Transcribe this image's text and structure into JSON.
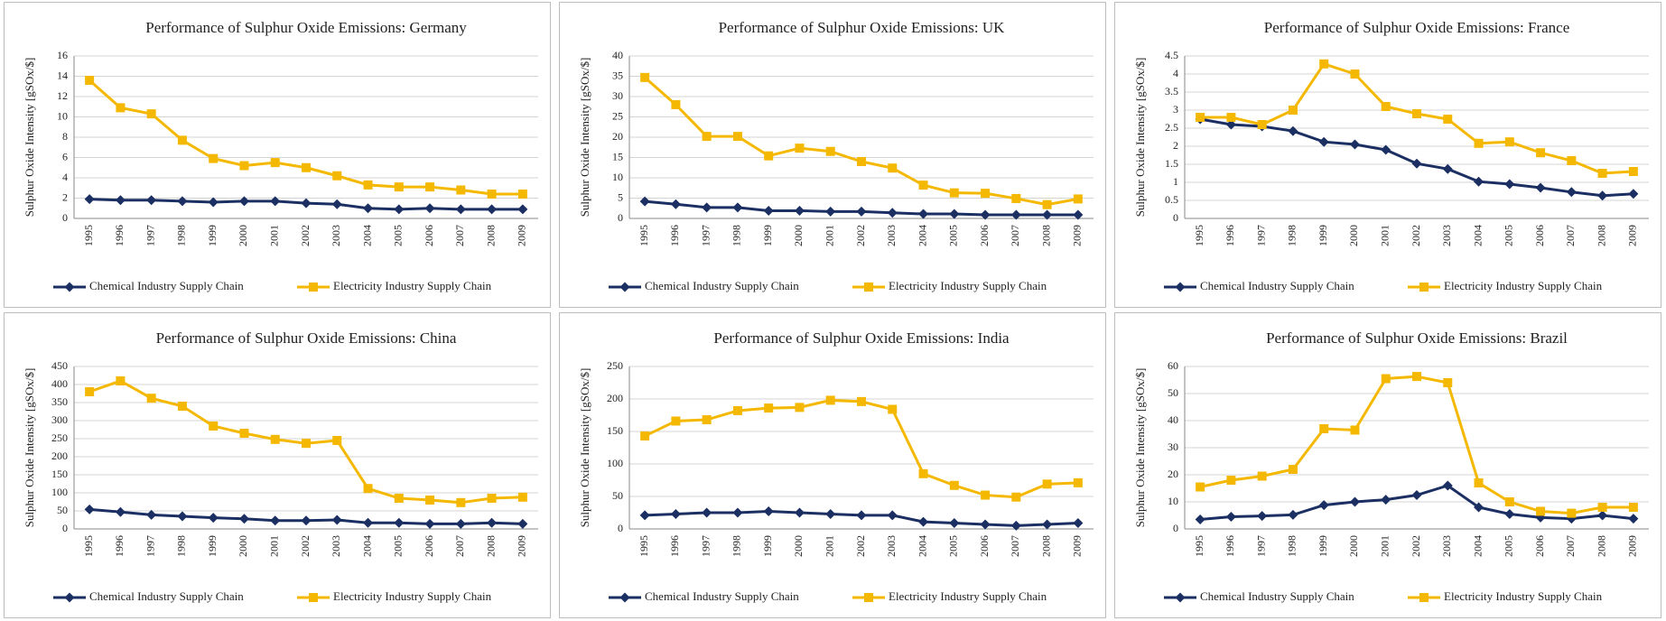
{
  "chart_data": [
    {
      "type": "line",
      "title": "Performance of  Sulphur Oxide Emissions: Germany",
      "y_label": "Sulphur Oxide Intensity [gSOx/$]",
      "categories": [
        "1995",
        "1996",
        "1997",
        "1998",
        "1999",
        "2000",
        "2001",
        "2002",
        "2003",
        "2004",
        "2005",
        "2006",
        "2007",
        "2008",
        "2009"
      ],
      "series": [
        {
          "name": "Chemical Industry Supply Chain",
          "color": "#1b2f63",
          "marker": "diamond",
          "values": [
            1.9,
            1.8,
            1.8,
            1.7,
            1.6,
            1.7,
            1.7,
            1.5,
            1.4,
            1.0,
            0.9,
            1.0,
            0.9,
            0.9,
            0.9
          ]
        },
        {
          "name": "Electricity Industry Supply Chain",
          "color": "#f5b800",
          "marker": "square",
          "values": [
            13.6,
            10.9,
            10.3,
            7.7,
            5.9,
            5.2,
            5.5,
            5.0,
            4.2,
            3.3,
            3.1,
            3.1,
            2.8,
            2.4,
            2.4
          ]
        }
      ],
      "ylim": [
        0,
        16
      ],
      "yticks": [
        0,
        2,
        4,
        6,
        8,
        10,
        12,
        14,
        16
      ],
      "grid": true,
      "legend": "bottom"
    },
    {
      "type": "line",
      "title": "Performance of  Sulphur Oxide Emissions: UK",
      "y_label": "Sulphur Oxide Intensity [gSOx/$]",
      "categories": [
        "1995",
        "1996",
        "1997",
        "1998",
        "1999",
        "2000",
        "2001",
        "2002",
        "2003",
        "2004",
        "2005",
        "2006",
        "2007",
        "2008",
        "2009"
      ],
      "series": [
        {
          "name": "Chemical Industry Supply Chain",
          "color": "#1b2f63",
          "marker": "diamond",
          "values": [
            4.2,
            3.5,
            2.7,
            2.7,
            1.9,
            1.9,
            1.7,
            1.7,
            1.4,
            1.1,
            1.1,
            0.9,
            0.9,
            0.9,
            0.9
          ]
        },
        {
          "name": "Electricity Industry Supply Chain",
          "color": "#f5b800",
          "marker": "square",
          "values": [
            34.7,
            28,
            20.2,
            20.2,
            15.4,
            17.3,
            16.5,
            14,
            12.4,
            8.2,
            6.3,
            6.2,
            4.9,
            3.4,
            4.8
          ]
        }
      ],
      "ylim": [
        0,
        40
      ],
      "yticks": [
        0,
        5,
        10,
        15,
        20,
        25,
        30,
        35,
        40
      ],
      "grid": true,
      "legend": "bottom"
    },
    {
      "type": "line",
      "title": "Performance of  Sulphur Oxide Emissions: France",
      "y_label": "Sulphur Oxide Intensity [gSOx/$]",
      "categories": [
        "1995",
        "1996",
        "1997",
        "1998",
        "1999",
        "2000",
        "2001",
        "2002",
        "2003",
        "2004",
        "2005",
        "2006",
        "2007",
        "2008",
        "2009"
      ],
      "series": [
        {
          "name": "Chemical Industry Supply Chain",
          "color": "#1b2f63",
          "marker": "diamond",
          "values": [
            2.75,
            2.6,
            2.55,
            2.42,
            2.12,
            2.05,
            1.9,
            1.52,
            1.37,
            1.02,
            0.95,
            0.85,
            0.73,
            0.63,
            0.68
          ]
        },
        {
          "name": "Electricity Industry Supply Chain",
          "color": "#f5b800",
          "marker": "square",
          "values": [
            2.8,
            2.8,
            2.6,
            3.0,
            4.28,
            4.0,
            3.1,
            2.9,
            2.75,
            2.08,
            2.12,
            1.82,
            1.6,
            1.25,
            1.3
          ]
        }
      ],
      "ylim": [
        0,
        4.5
      ],
      "yticks": [
        0,
        0.5,
        1,
        1.5,
        2,
        2.5,
        3,
        3.5,
        4,
        4.5
      ],
      "grid": true,
      "legend": "bottom"
    },
    {
      "type": "line",
      "title": "Performance of  Sulphur Oxide Emissions: China",
      "y_label": "Sulphur Oxide Intensity [gSOx/$]",
      "categories": [
        "1995",
        "1996",
        "1997",
        "1998",
        "1999",
        "2000",
        "2001",
        "2002",
        "2003",
        "2004",
        "2005",
        "2006",
        "2007",
        "2008",
        "2009"
      ],
      "series": [
        {
          "name": "Chemical Industry Supply Chain",
          "color": "#1b2f63",
          "marker": "diamond",
          "values": [
            54,
            47,
            39,
            35,
            31,
            28,
            23,
            23,
            25,
            17,
            17,
            14,
            14,
            17,
            14
          ]
        },
        {
          "name": "Electricity Industry Supply Chain",
          "color": "#f5b800",
          "marker": "square",
          "values": [
            380,
            410,
            362,
            340,
            285,
            265,
            248,
            237,
            245,
            112,
            85,
            80,
            73,
            85,
            88
          ]
        }
      ],
      "ylim": [
        0,
        450
      ],
      "yticks": [
        0,
        50,
        100,
        150,
        200,
        250,
        300,
        350,
        400,
        450
      ],
      "grid": true,
      "legend": "bottom"
    },
    {
      "type": "line",
      "title": "Performance of  Sulphur Oxide Emissions: India",
      "y_label": "Sulphur Oxide Intensity [gSOx/$]",
      "categories": [
        "1995",
        "1996",
        "1997",
        "1998",
        "1999",
        "2000",
        "2001",
        "2002",
        "2003",
        "2004",
        "2005",
        "2006",
        "2007",
        "2008",
        "2009"
      ],
      "series": [
        {
          "name": "Chemical Industry Supply Chain",
          "color": "#1b2f63",
          "marker": "diamond",
          "values": [
            21,
            23,
            25,
            25,
            27,
            25,
            23,
            21,
            21,
            11,
            9,
            7,
            5,
            7,
            9
          ]
        },
        {
          "name": "Electricity Industry Supply Chain",
          "color": "#f5b800",
          "marker": "square",
          "values": [
            143,
            166,
            168,
            182,
            186,
            187,
            198,
            196,
            184,
            85,
            67,
            52,
            49,
            69,
            71
          ]
        }
      ],
      "ylim": [
        0,
        250
      ],
      "yticks": [
        0,
        50,
        100,
        150,
        200,
        250
      ],
      "grid": true,
      "legend": "bottom"
    },
    {
      "type": "line",
      "title": "Performance of  Sulphur Oxide Emissions: Brazil",
      "y_label": "Sulphur Oxide Intensity [gSOx/$]",
      "categories": [
        "1995",
        "1996",
        "1997",
        "1998",
        "1999",
        "2000",
        "2001",
        "2002",
        "2003",
        "2004",
        "2005",
        "2006",
        "2007",
        "2008",
        "2009"
      ],
      "series": [
        {
          "name": "Chemical Industry Supply Chain",
          "color": "#1b2f63",
          "marker": "diamond",
          "values": [
            3.5,
            4.5,
            4.8,
            5.2,
            8.8,
            10,
            10.8,
            12.5,
            16,
            8,
            5.5,
            4.2,
            3.8,
            5,
            3.8
          ]
        },
        {
          "name": "Electricity Industry Supply Chain",
          "color": "#f5b800",
          "marker": "square",
          "values": [
            15.5,
            18,
            19.5,
            22,
            37,
            36.5,
            55.5,
            56.3,
            54,
            17,
            10,
            6.5,
            5.8,
            8,
            8
          ]
        }
      ],
      "ylim": [
        0,
        60
      ],
      "yticks": [
        0,
        10,
        20,
        30,
        40,
        50,
        60
      ],
      "grid": true,
      "legend": "bottom"
    }
  ]
}
